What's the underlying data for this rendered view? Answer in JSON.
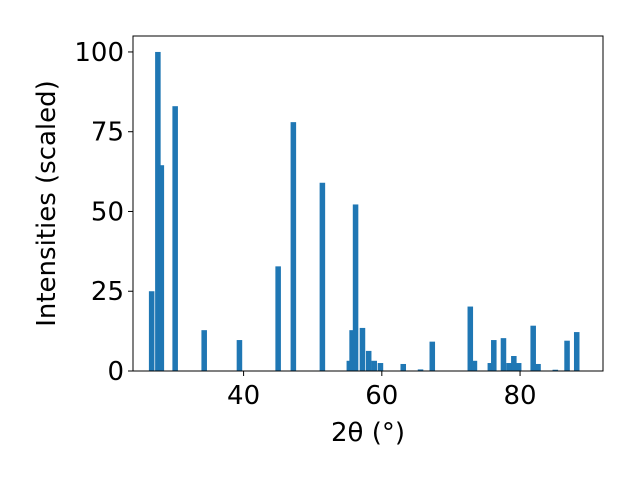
{
  "chart_data": {
    "type": "bar",
    "xlabel": "2θ (°)",
    "ylabel": "Intensities (scaled)",
    "xlim": [
      24,
      92
    ],
    "ylim": [
      0,
      105
    ],
    "x_ticks": [
      40,
      60,
      80
    ],
    "y_ticks": [
      0,
      25,
      50,
      75,
      100
    ],
    "grid": false,
    "bar_color": "#1f77b4",
    "bar_width": 0.8,
    "x": [
      26.7,
      27.6,
      28.1,
      30.1,
      34.3,
      39.4,
      45.0,
      47.2,
      51.4,
      55.3,
      55.7,
      56.2,
      57.2,
      58.1,
      58.9,
      59.8,
      63.1,
      65.6,
      67.3,
      72.8,
      73.4,
      75.7,
      76.2,
      77.6,
      78.4,
      79.1,
      79.8,
      81.9,
      82.6,
      85.1,
      86.8,
      88.2
    ],
    "values": [
      25,
      100,
      64.5,
      83,
      12.8,
      9.7,
      32.8,
      78,
      59,
      3.2,
      12.8,
      52.2,
      13.5,
      6.3,
      3.2,
      2.5,
      2.2,
      0.5,
      9.2,
      20.2,
      3.2,
      2.5,
      9.7,
      10.3,
      2.5,
      4.7,
      2.5,
      14.2,
      2.2,
      0.4,
      9.5,
      12.2
    ]
  }
}
